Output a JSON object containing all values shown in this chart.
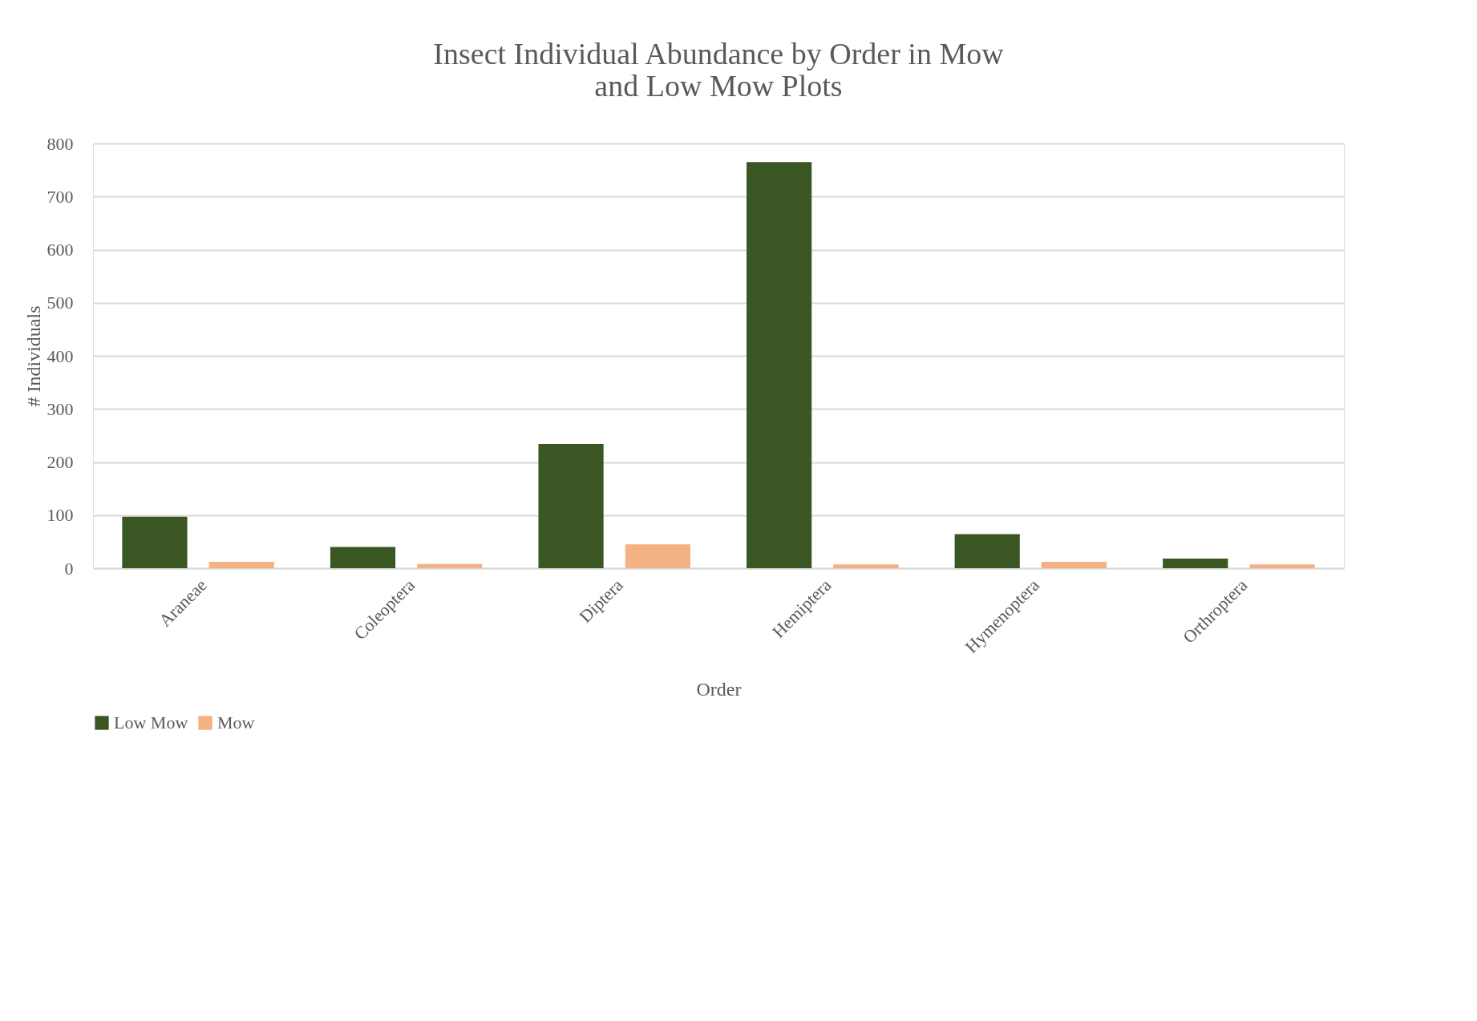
{
  "chart_data": {
    "type": "bar",
    "title": [
      "Insect Individual Abundance by Order in Mow",
      "and Low Mow Plots"
    ],
    "xlabel": "Order",
    "ylabel": "# Individuals",
    "categories": [
      "Araneae",
      "Coleoptera",
      "Diptera",
      "Hemiptera",
      "Hymenoptera",
      "Orthroptera"
    ],
    "series": [
      {
        "name": "Low Mow",
        "color": "#3a5623",
        "values": [
          97,
          40,
          234,
          765,
          64,
          18
        ]
      },
      {
        "name": "Mow",
        "color": "#f4b183",
        "values": [
          12,
          8,
          45,
          7,
          12,
          7
        ]
      }
    ],
    "ylim": [
      0,
      800
    ],
    "yticks": [
      0,
      100,
      200,
      300,
      400,
      500,
      600,
      700,
      800
    ],
    "grid": "y",
    "legend": "bottom"
  }
}
